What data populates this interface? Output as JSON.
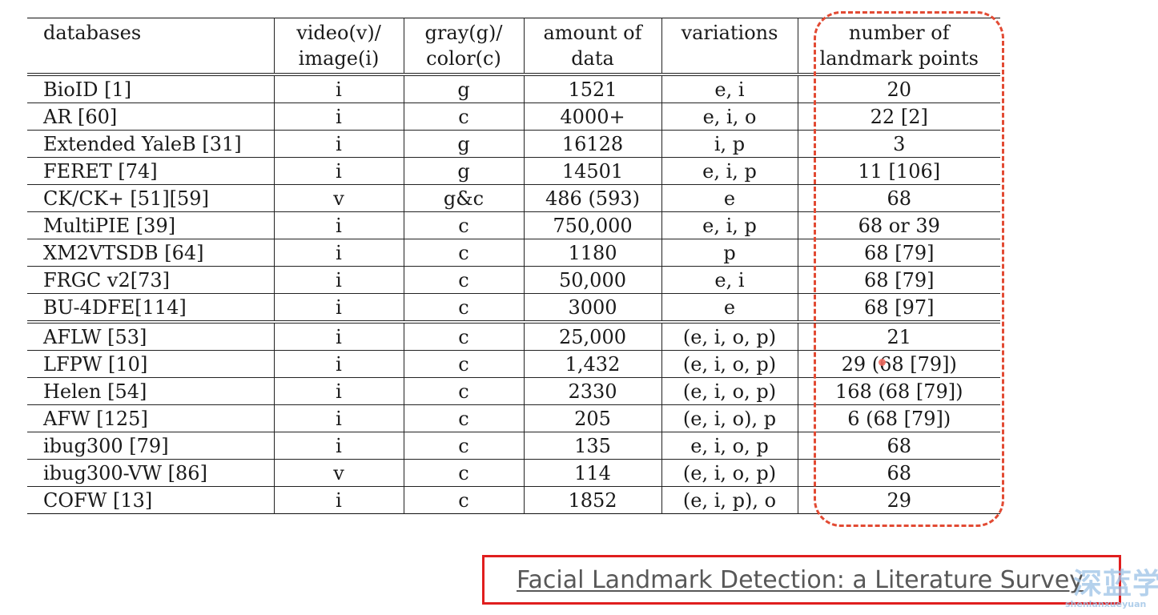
{
  "table": {
    "headers": [
      {
        "line1": "databases",
        "line2": ""
      },
      {
        "line1": "video(v)/",
        "line2": "image(i)"
      },
      {
        "line1": "gray(g)/",
        "line2": "color(c)"
      },
      {
        "line1": "amount of",
        "line2": "data"
      },
      {
        "line1": "variations",
        "line2": ""
      },
      {
        "line1": "number of",
        "line2": "landmark points"
      }
    ],
    "rows": [
      [
        "BioID [1]",
        "i",
        "g",
        "1521",
        "e, i",
        "20"
      ],
      [
        "AR [60]",
        "i",
        "c",
        "4000+",
        "e, i, o",
        "22 [2]"
      ],
      [
        "Extended YaleB [31]",
        "i",
        "g",
        "16128",
        "i, p",
        "3"
      ],
      [
        "FERET [74]",
        "i",
        "g",
        "14501",
        "e, i, p",
        "11 [106]"
      ],
      [
        "CK/CK+ [51][59]",
        "v",
        "g&c",
        "486 (593)",
        "e",
        "68"
      ],
      [
        "MultiPIE [39]",
        "i",
        "c",
        "750,000",
        "e, i, p",
        "68 or 39"
      ],
      [
        "XM2VTSDB [64]",
        "i",
        "c",
        "1180",
        "p",
        "68 [79]"
      ],
      [
        "FRGC v2[73]",
        "i",
        "c",
        "50,000",
        "e, i",
        "68 [79]"
      ],
      [
        "BU-4DFE[114]",
        "i",
        "c",
        "3000",
        "e",
        "68 [97]"
      ],
      [
        "AFLW [53]",
        "i",
        "c",
        "25,000",
        "(e, i, o, p)",
        "21"
      ],
      [
        "LFPW [10]",
        "i",
        "c",
        "1,432",
        "(e, i, o, p)",
        "29 (68 [79])"
      ],
      [
        "Helen [54]",
        "i",
        "c",
        "2330",
        "(e, i, o, p)",
        "168 (68 [79])"
      ],
      [
        "AFW [125]",
        "i",
        "c",
        "205",
        "(e, i, o), p",
        "6 (68 [79])"
      ],
      [
        "ibug300 [79]",
        "i",
        "c",
        "135",
        "e, i, o, p",
        "68"
      ],
      [
        "ibug300-VW [86]",
        "v",
        "c",
        "114",
        "(e, i, o, p)",
        "68"
      ],
      [
        "COFW [13]",
        "i",
        "c",
        "1852",
        "(e, i, p), o",
        "29"
      ]
    ]
  },
  "caption": {
    "text": "Facial Landmark Detection: a Literature Survey"
  },
  "watermark": {
    "text_cn": "深蓝学",
    "text_en": "shenlanxueyuan"
  },
  "colors": {
    "highlight": "#e24a33",
    "caption_border": "#e01e1e",
    "caption_text": "#585858"
  }
}
